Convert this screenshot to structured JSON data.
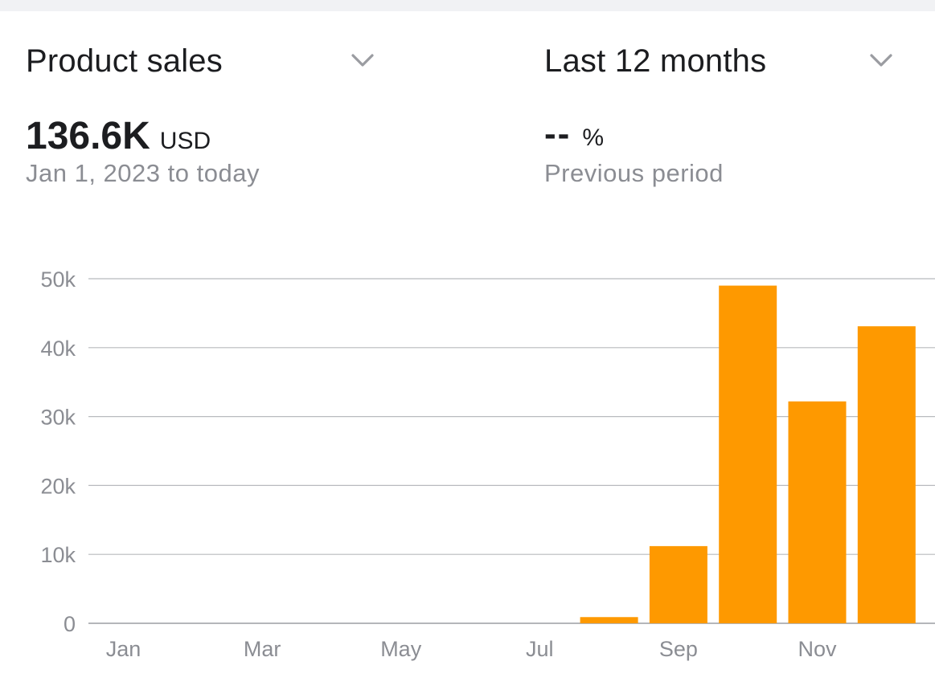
{
  "metric_selector": {
    "label": "Product sales",
    "icon": "chevron-down-icon"
  },
  "period_selector": {
    "label": "Last 12 months",
    "icon": "chevron-down-icon"
  },
  "summary": {
    "value": "136.6K",
    "unit": "USD",
    "range": "Jan 1, 2023 to today"
  },
  "comparison": {
    "value": "--",
    "unit": "%",
    "label": "Previous period"
  },
  "colors": {
    "bar": "#fe9900",
    "grid": "#b8babe",
    "axis_text": "#8b8d93",
    "text": "#1c1d20"
  },
  "chart_data": {
    "type": "bar",
    "categories": [
      "Jan",
      "Feb",
      "Mar",
      "Apr",
      "May",
      "Jun",
      "Jul",
      "Aug",
      "Sep",
      "Oct",
      "Nov",
      "Dec"
    ],
    "x_tick_labels": [
      "Jan",
      "Mar",
      "May",
      "Jul",
      "Sep",
      "Nov"
    ],
    "values": [
      0,
      0,
      0,
      0,
      0,
      0,
      0,
      900,
      11200,
      49000,
      32200,
      43100
    ],
    "y_ticks": [
      0,
      10000,
      20000,
      30000,
      40000,
      50000
    ],
    "y_tick_labels": [
      "0",
      "10k",
      "20k",
      "30k",
      "40k",
      "50k"
    ],
    "ylim": [
      0,
      50000
    ],
    "grid": true,
    "title": "",
    "xlabel": "",
    "ylabel": ""
  }
}
